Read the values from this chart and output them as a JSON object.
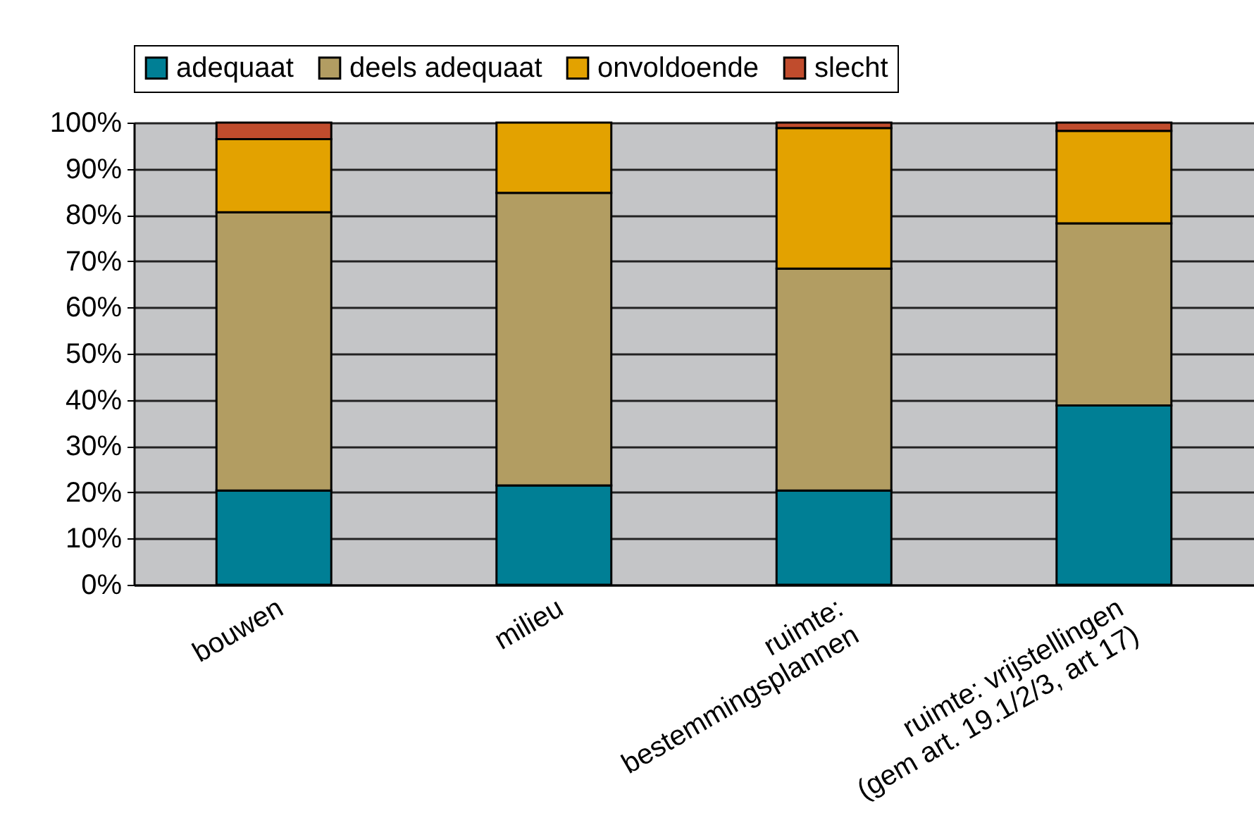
{
  "chart_data": {
    "type": "bar",
    "stacked": true,
    "categories": [
      "bouwen",
      "milieu",
      "ruimte:\nbestemmingsplannen",
      "ruimte: vrijstellingen\n(gem art. 19.1/2/3, art 17)"
    ],
    "series": [
      {
        "name": "adequaat",
        "color": "#007f95",
        "values": [
          20.4,
          21.5,
          20.4,
          38.8
        ]
      },
      {
        "name": "deels adequaat",
        "color": "#b29d62",
        "values": [
          60.2,
          63.3,
          48.0,
          39.4
        ]
      },
      {
        "name": "onvoldoende",
        "color": "#e3a200",
        "values": [
          15.8,
          15.2,
          30.4,
          20.0
        ]
      },
      {
        "name": "slecht",
        "color": "#c04c2d",
        "values": [
          3.6,
          null,
          1.2,
          1.8
        ]
      }
    ],
    "ylim": [
      0,
      100
    ],
    "yticks": [
      {
        "value": 0,
        "label": "0%"
      },
      {
        "value": 10,
        "label": "10%"
      },
      {
        "value": 20,
        "label": "20%"
      },
      {
        "value": 30,
        "label": "30%"
      },
      {
        "value": 40,
        "label": "40%"
      },
      {
        "value": 50,
        "label": "50%"
      },
      {
        "value": 60,
        "label": "60%"
      },
      {
        "value": 70,
        "label": "70%"
      },
      {
        "value": 80,
        "label": "80%"
      },
      {
        "value": 90,
        "label": "90%"
      },
      {
        "value": 100,
        "label": "100%"
      }
    ],
    "grid": "y",
    "legend": "top"
  }
}
